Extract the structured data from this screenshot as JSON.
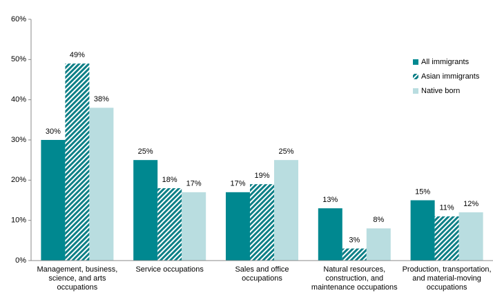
{
  "chart_data": {
    "type": "bar",
    "categories": [
      "Management, business,\nscience, and arts\noccupations",
      "Service occupations",
      "Sales and office\noccupations",
      "Natural resources,\nconstruction, and\nmaintenance occupations",
      "Production, transportation,\nand material-moving\noccupations"
    ],
    "series": [
      {
        "name": "All immigrants",
        "color": "#008890",
        "hatch": false,
        "values": [
          30,
          25,
          17,
          13,
          15
        ],
        "value_labels": [
          "30%",
          "25%",
          "17%",
          "13%",
          "15%"
        ]
      },
      {
        "name": "Asian immigrants",
        "color": "#0d7f86",
        "hatch": true,
        "values": [
          49,
          18,
          19,
          3,
          11
        ],
        "value_labels": [
          "49%",
          "18%",
          "19%",
          "3%",
          "11%"
        ]
      },
      {
        "name": "Native born",
        "color": "#b9dde0",
        "hatch": false,
        "values": [
          38,
          17,
          25,
          8,
          12
        ],
        "value_labels": [
          "38%",
          "17%",
          "25%",
          "8%",
          "12%"
        ]
      }
    ],
    "ylim": [
      0,
      60
    ],
    "yticks": [
      {
        "value": 0,
        "label": "0%"
      },
      {
        "value": 10,
        "label": "10%"
      },
      {
        "value": 20,
        "label": "20%"
      },
      {
        "value": 30,
        "label": "30%"
      },
      {
        "value": 40,
        "label": "40%"
      },
      {
        "value": 50,
        "label": "50%"
      },
      {
        "value": 60,
        "label": "60%"
      }
    ],
    "grid": false,
    "legend": "top-right"
  }
}
